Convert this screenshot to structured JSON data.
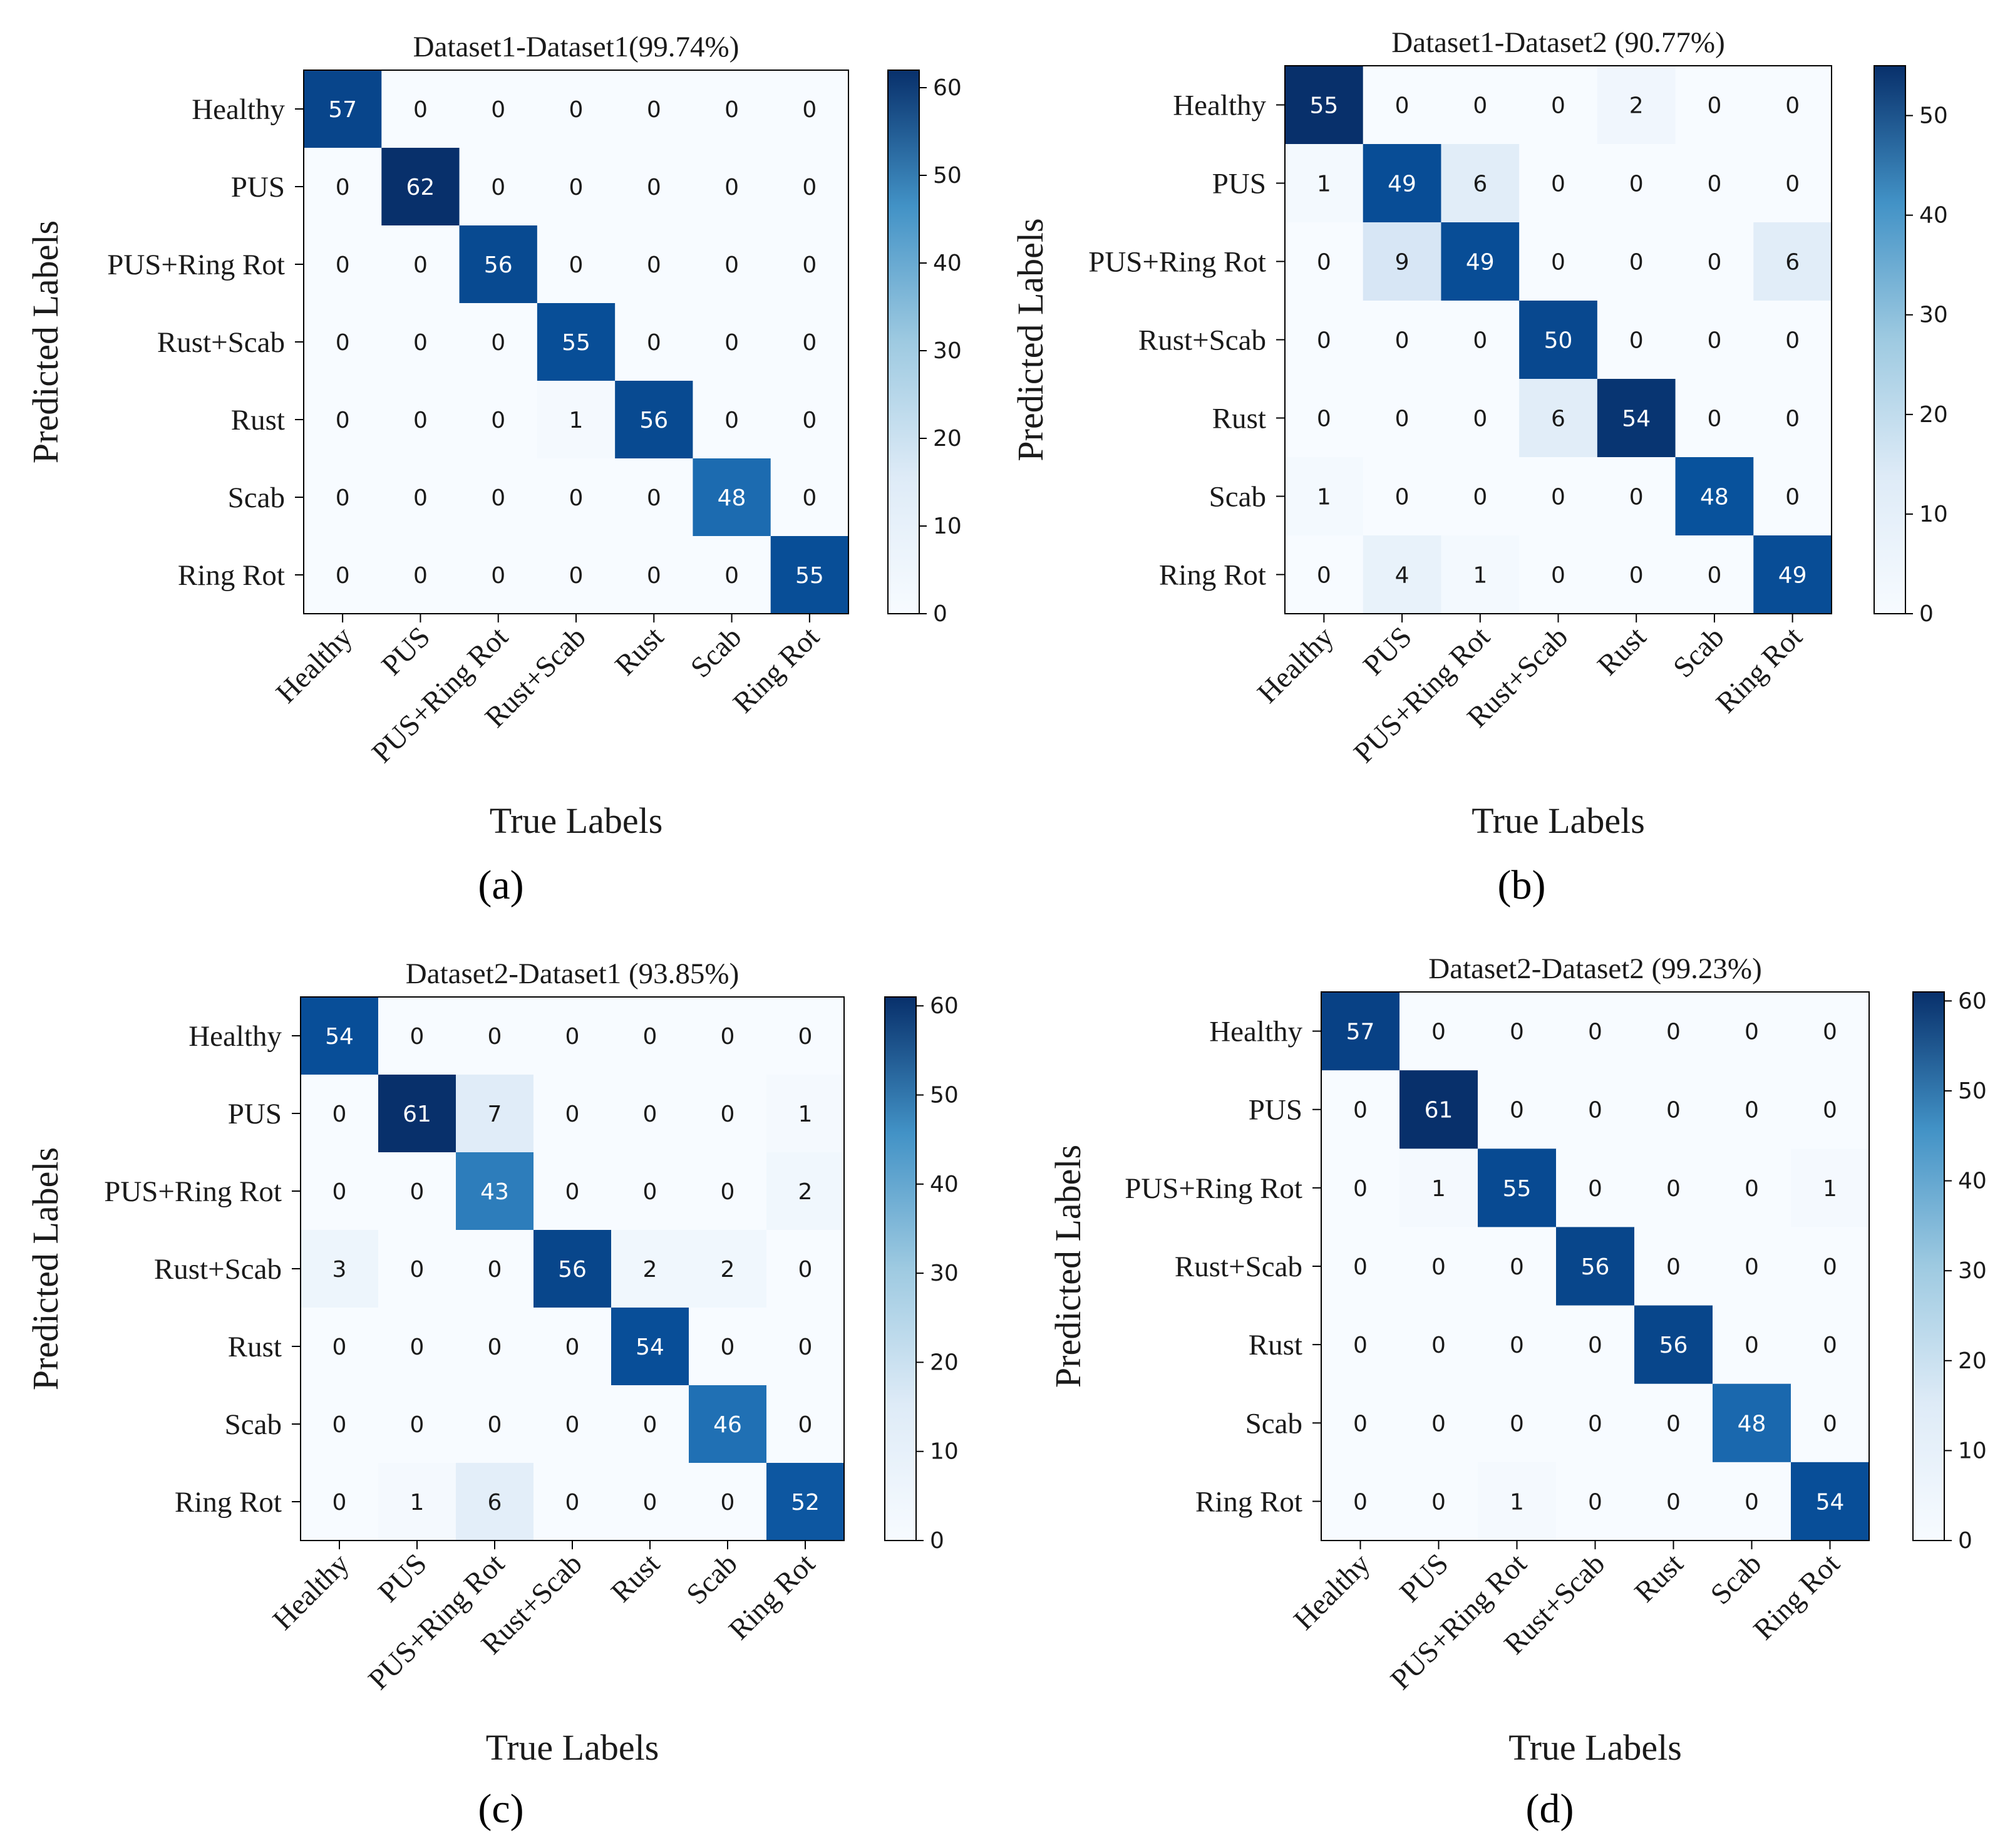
{
  "colors": {
    "cmap_low": "#f7fbff",
    "cmap_mid1": "#deebf7",
    "cmap_mid2": "#9ecae1",
    "cmap_mid3": "#4292c6",
    "cmap_high": "#08306b",
    "text_dark": "#1a1a1a",
    "text_light": "#ffffff"
  },
  "chart_data": [
    {
      "type": "heatmap",
      "panel_label": "(a)",
      "title": "Dataset1-Dataset1(99.74%)",
      "xlabel": "True Labels",
      "ylabel": "Predicted Labels",
      "x_categories": [
        "Healthy",
        "PUS",
        "PUS+Ring Rot",
        "Rust+Scab",
        "Rust",
        "Scab",
        "Ring Rot"
      ],
      "y_categories": [
        "Healthy",
        "PUS",
        "PUS+Ring Rot",
        "Rust+Scab",
        "Rust",
        "Scab",
        "Ring Rot"
      ],
      "matrix": [
        [
          57,
          0,
          0,
          0,
          0,
          0,
          0
        ],
        [
          0,
          62,
          0,
          0,
          0,
          0,
          0
        ],
        [
          0,
          0,
          56,
          0,
          0,
          0,
          0
        ],
        [
          0,
          0,
          0,
          55,
          0,
          0,
          0
        ],
        [
          0,
          0,
          0,
          1,
          56,
          0,
          0
        ],
        [
          0,
          0,
          0,
          0,
          0,
          48,
          0
        ],
        [
          0,
          0,
          0,
          0,
          0,
          0,
          55
        ]
      ],
      "colorbar": {
        "range": [
          0,
          62
        ],
        "ticks": [
          0,
          10,
          20,
          30,
          40,
          50,
          60
        ]
      }
    },
    {
      "type": "heatmap",
      "panel_label": "(b)",
      "title": "Dataset1-Dataset2 (90.77%)",
      "xlabel": "True Labels",
      "ylabel": "Predicted Labels",
      "x_categories": [
        "Healthy",
        "PUS",
        "PUS+Ring Rot",
        "Rust+Scab",
        "Rust",
        "Scab",
        "Ring Rot"
      ],
      "y_categories": [
        "Healthy",
        "PUS",
        "PUS+Ring Rot",
        "Rust+Scab",
        "Rust",
        "Scab",
        "Ring Rot"
      ],
      "matrix": [
        [
          55,
          0,
          0,
          0,
          2,
          0,
          0
        ],
        [
          1,
          49,
          6,
          0,
          0,
          0,
          0
        ],
        [
          0,
          9,
          49,
          0,
          0,
          0,
          6
        ],
        [
          0,
          0,
          0,
          50,
          0,
          0,
          0
        ],
        [
          0,
          0,
          0,
          6,
          54,
          0,
          0
        ],
        [
          1,
          0,
          0,
          0,
          0,
          48,
          0
        ],
        [
          0,
          4,
          1,
          0,
          0,
          0,
          49
        ]
      ],
      "colorbar": {
        "range": [
          0,
          55
        ],
        "ticks": [
          0,
          10,
          20,
          30,
          40,
          50
        ]
      }
    },
    {
      "type": "heatmap",
      "panel_label": "(c)",
      "title": "Dataset2-Dataset1 (93.85%)",
      "xlabel": "True Labels",
      "ylabel": "Predicted Labels",
      "x_categories": [
        "Healthy",
        "PUS",
        "PUS+Ring Rot",
        "Rust+Scab",
        "Rust",
        "Scab",
        "Ring Rot"
      ],
      "y_categories": [
        "Healthy",
        "PUS",
        "PUS+Ring Rot",
        "Rust+Scab",
        "Rust",
        "Scab",
        "Ring Rot"
      ],
      "matrix": [
        [
          54,
          0,
          0,
          0,
          0,
          0,
          0
        ],
        [
          0,
          61,
          7,
          0,
          0,
          0,
          1
        ],
        [
          0,
          0,
          43,
          0,
          0,
          0,
          2
        ],
        [
          3,
          0,
          0,
          56,
          2,
          2,
          0
        ],
        [
          0,
          0,
          0,
          0,
          54,
          0,
          0
        ],
        [
          0,
          0,
          0,
          0,
          0,
          46,
          0
        ],
        [
          0,
          1,
          6,
          0,
          0,
          0,
          52
        ]
      ],
      "colorbar": {
        "range": [
          0,
          61
        ],
        "ticks": [
          0,
          10,
          20,
          30,
          40,
          50,
          60
        ]
      }
    },
    {
      "type": "heatmap",
      "panel_label": "(d)",
      "title": "Dataset2-Dataset2 (99.23%)",
      "xlabel": "True Labels",
      "ylabel": "Predicted Labels",
      "x_categories": [
        "Healthy",
        "PUS",
        "PUS+Ring Rot",
        "Rust+Scab",
        "Rust",
        "Scab",
        "Ring Rot"
      ],
      "y_categories": [
        "Healthy",
        "PUS",
        "PUS+Ring Rot",
        "Rust+Scab",
        "Rust",
        "Scab",
        "Ring Rot"
      ],
      "matrix": [
        [
          57,
          0,
          0,
          0,
          0,
          0,
          0
        ],
        [
          0,
          61,
          0,
          0,
          0,
          0,
          0
        ],
        [
          0,
          1,
          55,
          0,
          0,
          0,
          1
        ],
        [
          0,
          0,
          0,
          56,
          0,
          0,
          0
        ],
        [
          0,
          0,
          0,
          0,
          56,
          0,
          0
        ],
        [
          0,
          0,
          0,
          0,
          0,
          48,
          0
        ],
        [
          0,
          0,
          1,
          0,
          0,
          0,
          54
        ]
      ],
      "colorbar": {
        "range": [
          0,
          61
        ],
        "ticks": [
          0,
          10,
          20,
          30,
          40,
          50,
          60
        ]
      }
    }
  ]
}
